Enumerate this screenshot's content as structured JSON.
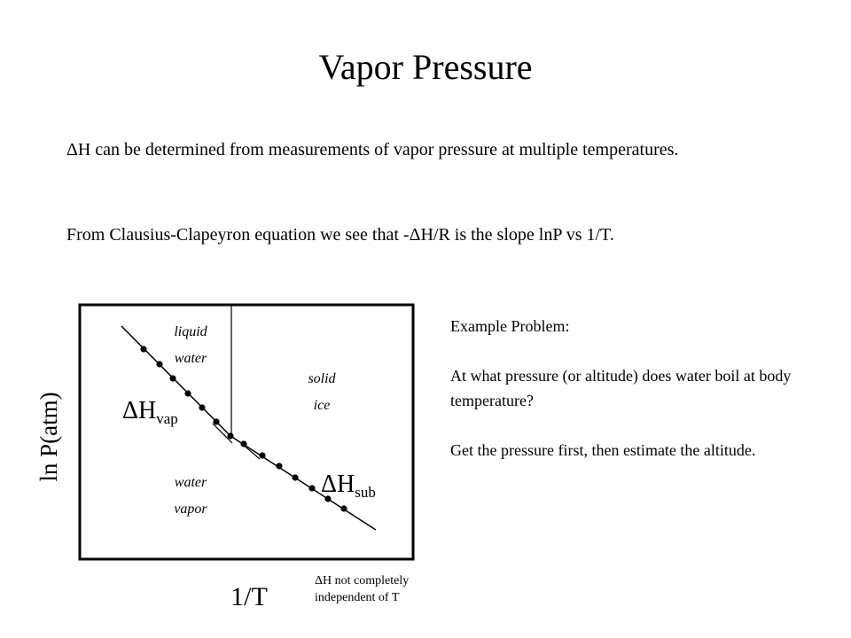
{
  "slide": {
    "title": "Vapor Pressure",
    "paragraph1": "ΔH can be determined from measurements of vapor pressure at multiple temperatures.",
    "paragraph2": "From Clausius-Clapeyron equation we see that -ΔH/R is the slope lnP vs 1/T."
  },
  "diagram": {
    "y_axis_label": "ln P(atm)",
    "x_axis_label": "1/T",
    "regions": {
      "liquid_line1": "liquid",
      "liquid_line2": "water",
      "solid_line1": "solid",
      "solid_line2": "ice",
      "vapor_line1": "water",
      "vapor_line2": "vapor"
    },
    "dh_vap_main": "ΔH",
    "dh_vap_sub": "vap",
    "dh_sub_main": "ΔH",
    "dh_sub_sub": "sub"
  },
  "example": {
    "heading": "Example Problem:",
    "question": "At what pressure (or altitude) does water boil at body temperature?",
    "hint": "Get the pressure first, then estimate the altitude."
  },
  "note": {
    "line1": "ΔH not completely",
    "line2": "independent of T"
  }
}
